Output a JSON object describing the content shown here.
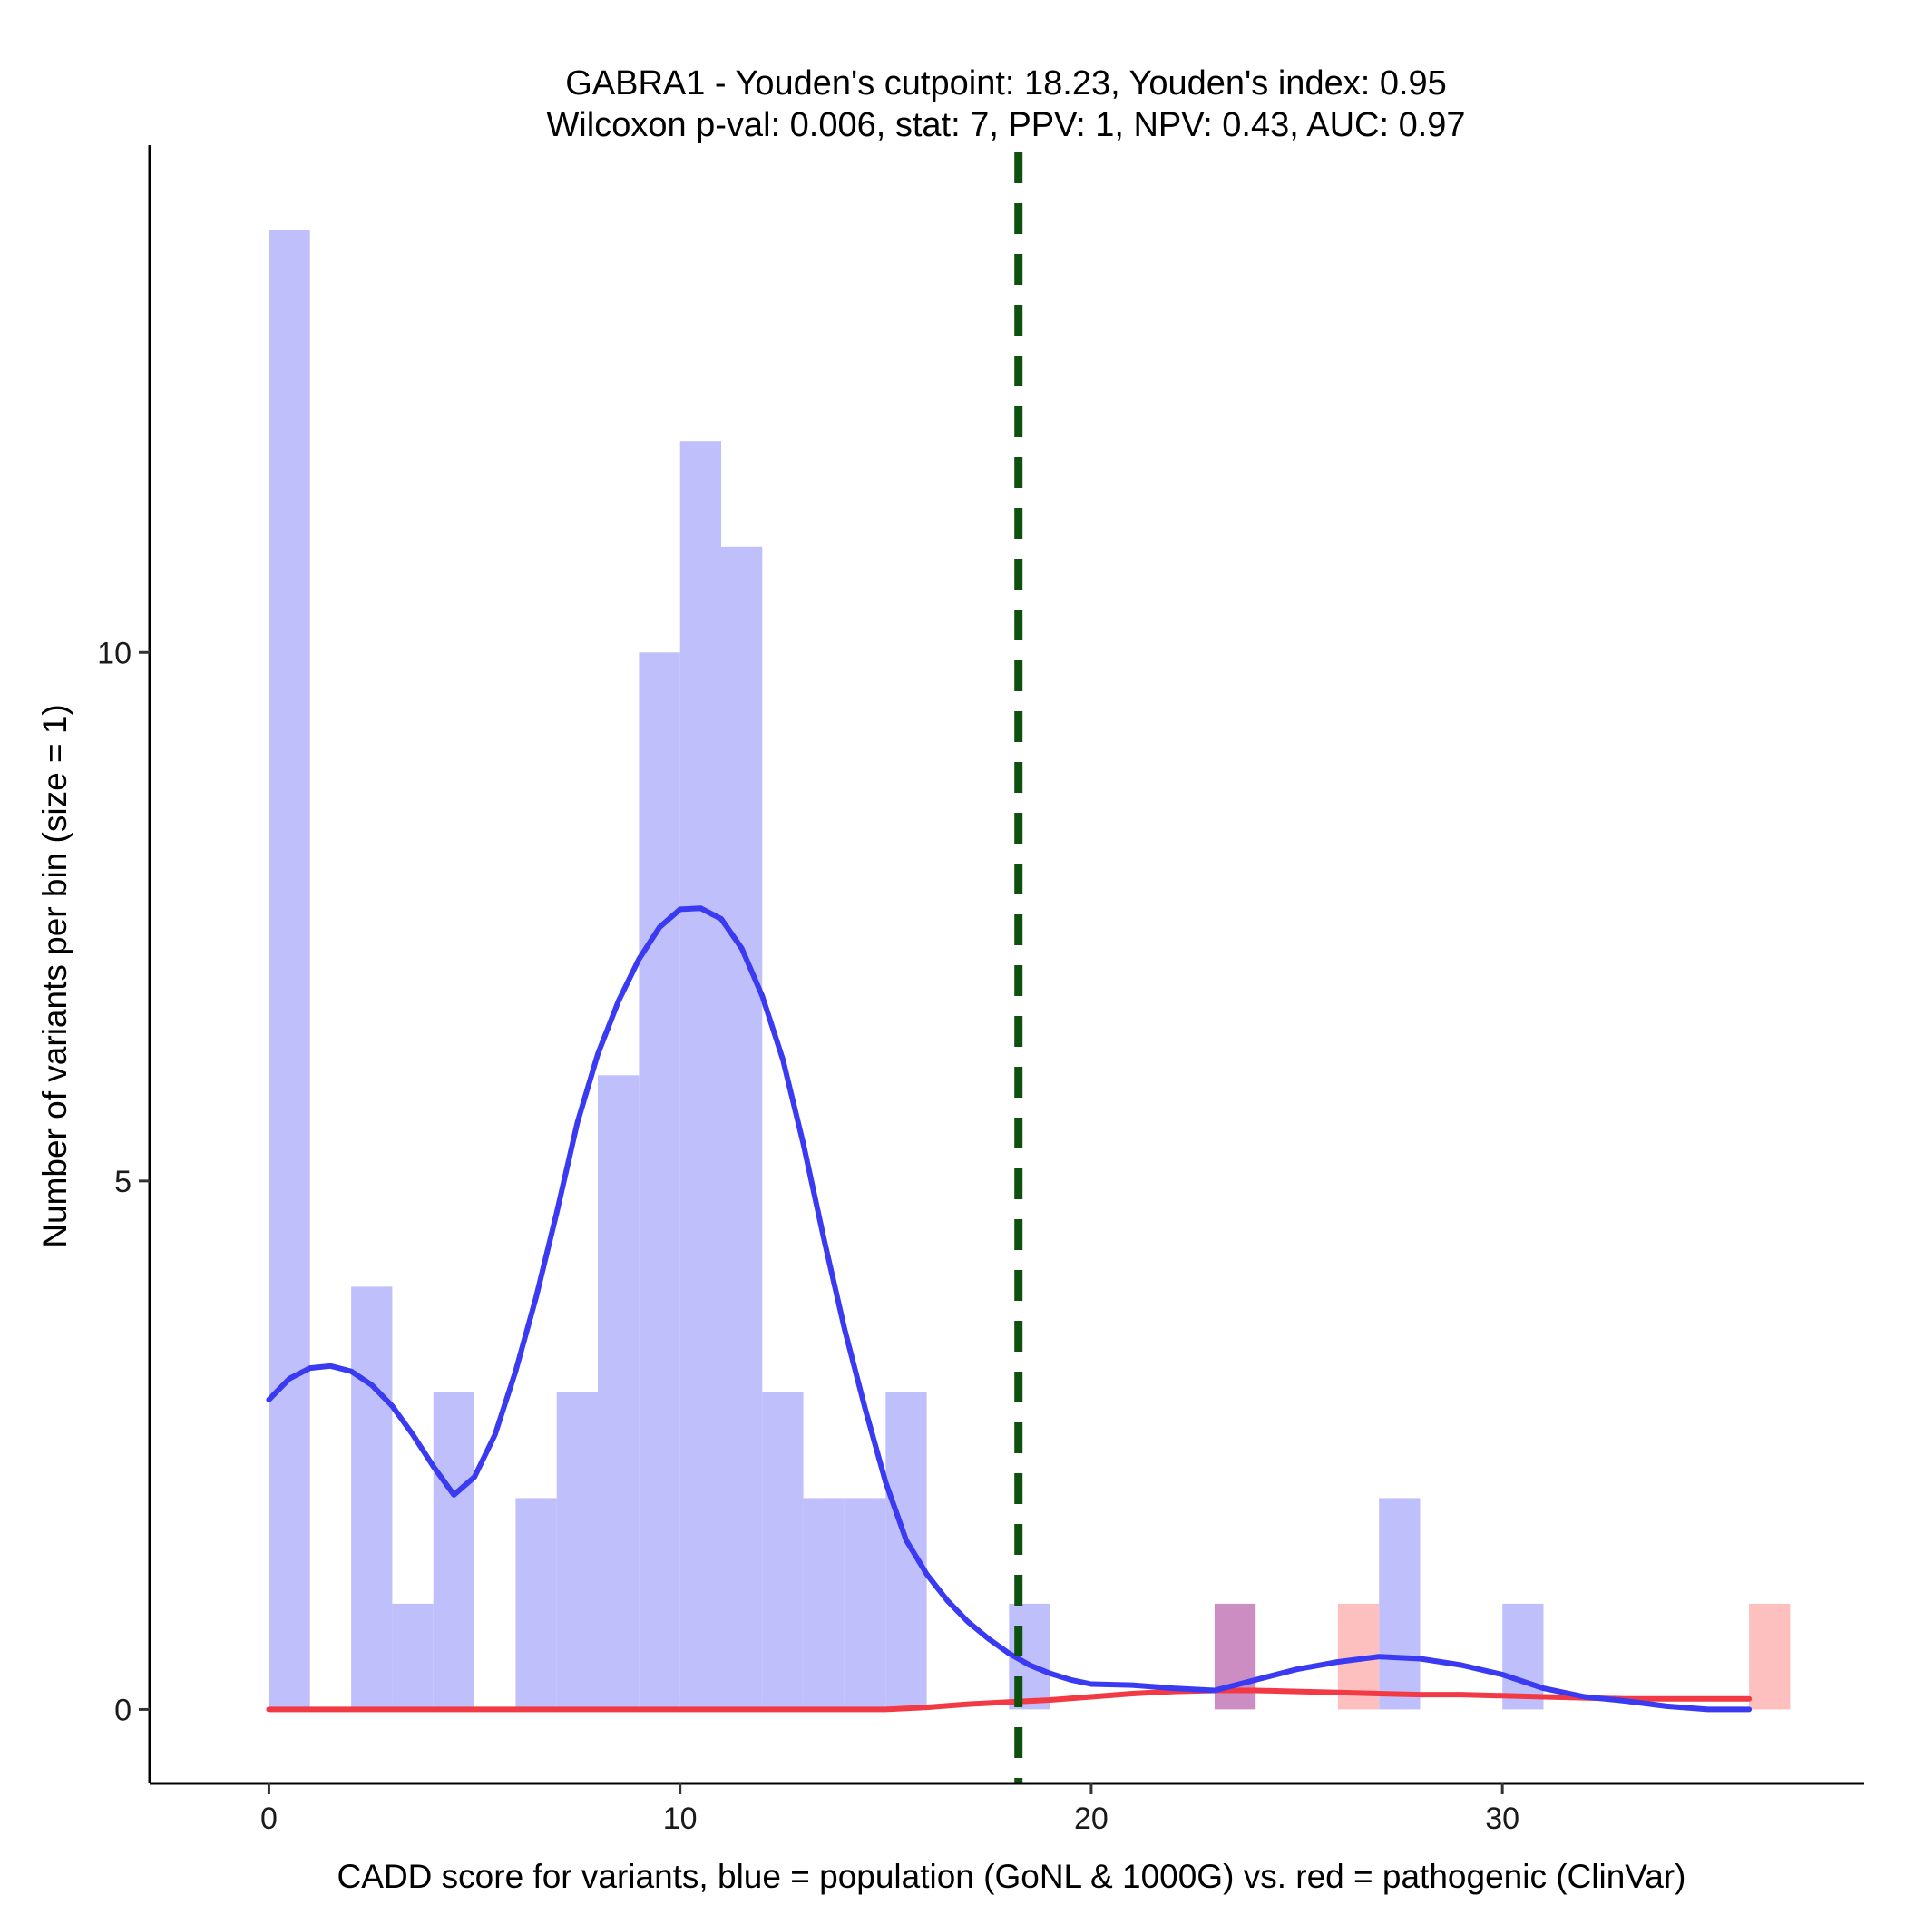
{
  "chart_data": {
    "type": "bar",
    "title_line1": "GABRA1 - Youden's cutpoint: 18.23, Youden's index: 0.95",
    "title_line2": "Wilcoxon p-val: 0.006, stat: 7, PPV: 1, NPV: 0.43, AUC: 0.97",
    "xlabel": "CADD score for variants, blue = population (GoNL & 1000G) vs. red = pathogenic (ClinVar)",
    "ylabel": "Number of variants per bin (size = 1)",
    "xlim": [
      -2.9,
      38.8
    ],
    "ylim": [
      -0.7,
      14.8
    ],
    "xticks": [
      0,
      10,
      20,
      30
    ],
    "yticks": [
      0,
      5,
      10
    ],
    "bin_width": 1,
    "colors": {
      "population_bar": "#BFBFFB",
      "pathogenic_bar": "#FEBFBF",
      "overlap_bar": "#CC8DC3",
      "population_density": "#3A3AF2",
      "pathogenic_density": "#F23A45",
      "cutpoint": "#0E500E"
    },
    "cutpoint": 18.23,
    "series": [
      {
        "name": "population (GoNL & 1000G)",
        "color": "#BFBFFB",
        "bins": [
          {
            "start": 0,
            "count": 14
          },
          {
            "start": 2,
            "count": 4
          },
          {
            "start": 3,
            "count": 1
          },
          {
            "start": 4,
            "count": 3
          },
          {
            "start": 6,
            "count": 2
          },
          {
            "start": 7,
            "count": 3
          },
          {
            "start": 8,
            "count": 6
          },
          {
            "start": 9,
            "count": 10
          },
          {
            "start": 10,
            "count": 12
          },
          {
            "start": 11,
            "count": 11
          },
          {
            "start": 12,
            "count": 3
          },
          {
            "start": 13,
            "count": 2
          },
          {
            "start": 14,
            "count": 2
          },
          {
            "start": 15,
            "count": 3
          },
          {
            "start": 18,
            "count": 1
          },
          {
            "start": 23,
            "count": 1
          },
          {
            "start": 27,
            "count": 2
          },
          {
            "start": 30,
            "count": 1
          }
        ]
      },
      {
        "name": "pathogenic (ClinVar)",
        "color": "#FEBFBF",
        "bins": [
          {
            "start": 23,
            "count": 1
          },
          {
            "start": 26,
            "count": 1
          },
          {
            "start": 36,
            "count": 1
          }
        ]
      }
    ],
    "density_curves": [
      {
        "name": "population density",
        "color": "#3A3AF2",
        "points": [
          [
            0,
            2.93
          ],
          [
            0.5,
            3.13
          ],
          [
            1,
            3.23
          ],
          [
            1.5,
            3.25
          ],
          [
            2,
            3.2
          ],
          [
            2.5,
            3.07
          ],
          [
            3,
            2.87
          ],
          [
            3.5,
            2.6
          ],
          [
            4,
            2.3
          ],
          [
            4.5,
            2.03
          ],
          [
            5,
            2.2
          ],
          [
            5.5,
            2.6
          ],
          [
            6,
            3.2
          ],
          [
            6.5,
            3.9
          ],
          [
            7,
            4.7
          ],
          [
            7.5,
            5.55
          ],
          [
            8,
            6.2
          ],
          [
            8.5,
            6.7
          ],
          [
            9,
            7.1
          ],
          [
            9.5,
            7.4
          ],
          [
            10,
            7.57
          ],
          [
            10.5,
            7.58
          ],
          [
            11,
            7.48
          ],
          [
            11.5,
            7.2
          ],
          [
            12,
            6.75
          ],
          [
            12.5,
            6.15
          ],
          [
            13,
            5.35
          ],
          [
            13.5,
            4.45
          ],
          [
            14,
            3.6
          ],
          [
            14.5,
            2.85
          ],
          [
            15,
            2.15
          ],
          [
            15.5,
            1.6
          ],
          [
            16,
            1.28
          ],
          [
            16.5,
            1.03
          ],
          [
            17,
            0.83
          ],
          [
            17.5,
            0.67
          ],
          [
            18,
            0.53
          ],
          [
            18.5,
            0.42
          ],
          [
            19,
            0.34
          ],
          [
            19.5,
            0.28
          ],
          [
            20,
            0.24
          ],
          [
            21,
            0.23
          ],
          [
            22,
            0.2
          ],
          [
            23,
            0.18
          ],
          [
            24,
            0.28
          ],
          [
            25,
            0.38
          ],
          [
            26,
            0.45
          ],
          [
            27,
            0.5
          ],
          [
            28,
            0.48
          ],
          [
            29,
            0.42
          ],
          [
            30,
            0.33
          ],
          [
            31,
            0.2
          ],
          [
            32,
            0.12
          ],
          [
            33,
            0.08
          ],
          [
            34,
            0.03
          ],
          [
            35,
            0.0
          ],
          [
            36,
            0.0
          ]
        ]
      },
      {
        "name": "pathogenic density",
        "color": "#F23A45",
        "points": [
          [
            0,
            0.0
          ],
          [
            15,
            0.0
          ],
          [
            16,
            0.02
          ],
          [
            17,
            0.05
          ],
          [
            18,
            0.07
          ],
          [
            19,
            0.09
          ],
          [
            20,
            0.12
          ],
          [
            21,
            0.15
          ],
          [
            22,
            0.17
          ],
          [
            23,
            0.18
          ],
          [
            24,
            0.18
          ],
          [
            25,
            0.17
          ],
          [
            26,
            0.16
          ],
          [
            27,
            0.15
          ],
          [
            28,
            0.14
          ],
          [
            29,
            0.14
          ],
          [
            30,
            0.13
          ],
          [
            31,
            0.12
          ],
          [
            32,
            0.11
          ],
          [
            33,
            0.1
          ],
          [
            34,
            0.1
          ],
          [
            35,
            0.1
          ],
          [
            36,
            0.1
          ]
        ]
      }
    ]
  }
}
